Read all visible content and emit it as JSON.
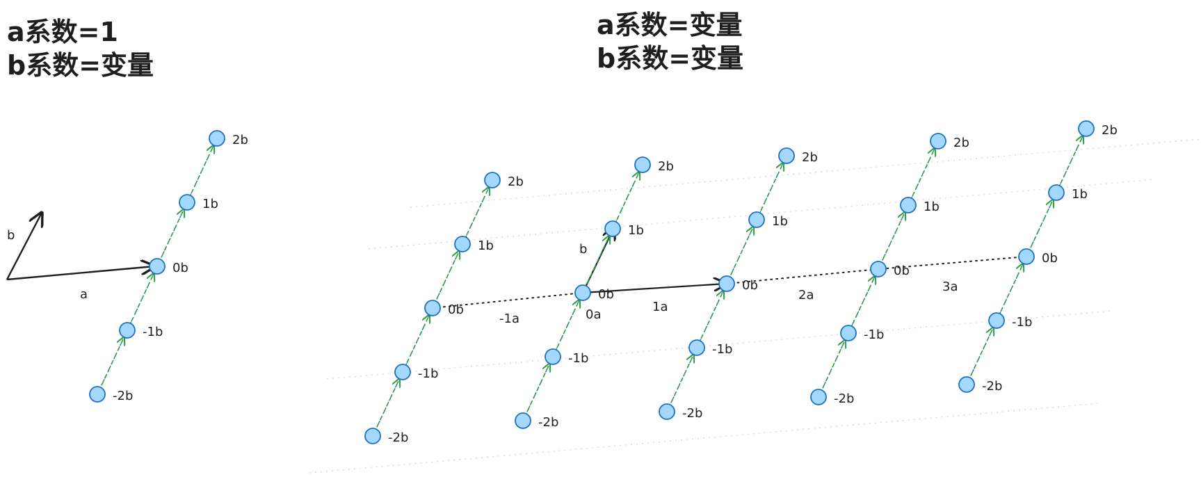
{
  "left_panel": {
    "heading_line1": "a系数=1",
    "heading_line2": "b系数=变量",
    "basis_a_label": "a",
    "basis_b_label": "b",
    "points": [
      "-2b",
      "-1b",
      "0b",
      "1b",
      "2b"
    ]
  },
  "right_panel": {
    "heading_line1": "a系数=变量",
    "heading_line2": "b系数=变量",
    "vector_a_label": "1a",
    "vector_b_label": "b",
    "columns": [
      {
        "a_label": "-1a",
        "points": [
          "-2b",
          "-1b",
          "0b",
          "1b",
          "2b"
        ]
      },
      {
        "a_label": "0a",
        "points": [
          "-2b",
          "-1b",
          "0b",
          "1b",
          "2b"
        ]
      },
      {
        "a_label": "1a",
        "points": [
          "-2b",
          "-1b",
          "0b",
          "1b",
          "2b"
        ]
      },
      {
        "a_label": "2a",
        "points": [
          "-2b",
          "-1b",
          "0b",
          "1b",
          "2b"
        ]
      },
      {
        "a_label": "3a",
        "points": [
          "-2b",
          "-1b",
          "0b",
          "1b",
          "2b"
        ]
      }
    ]
  },
  "colors": {
    "node_fill": "#a5d8ff",
    "node_stroke": "#1971c2",
    "green": "#2f9e44",
    "text": "#1e1e1e",
    "guide": "#dddddd"
  }
}
